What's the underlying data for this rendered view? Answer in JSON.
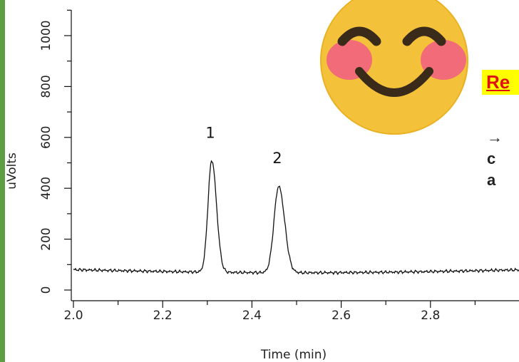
{
  "chart_data": {
    "type": "line",
    "xlabel": "Time (min)",
    "ylabel": "uVolts",
    "xlim": [
      2.0,
      3.0
    ],
    "ylim": [
      -30,
      1100
    ],
    "x_ticks": [
      "2.0",
      "2.2",
      "2.4",
      "2.6",
      "2.8"
    ],
    "y_ticks": [
      "0",
      "200",
      "400",
      "600",
      "800",
      "1000"
    ],
    "baseline": 80,
    "peaks": [
      {
        "label": "1",
        "time": 2.31,
        "height": 520
      },
      {
        "label": "2",
        "time": 2.46,
        "height": 420
      }
    ],
    "series_color": "#111111"
  },
  "overlay": {
    "emoji_icon": "smiling-face-with-smiling-eyes-icon",
    "slide_text": "Re",
    "slide_subtext_line1": "→",
    "slide_subtext_line2": "c",
    "slide_subtext_line3": "a"
  }
}
